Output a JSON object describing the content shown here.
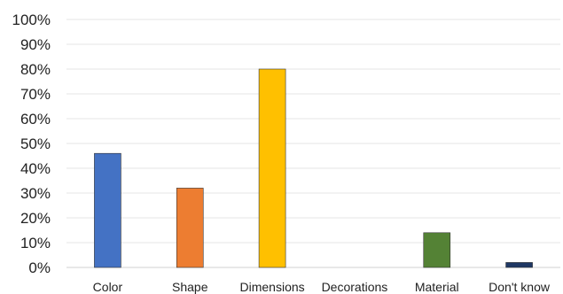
{
  "chart_data": {
    "type": "bar",
    "title": "",
    "xlabel": "",
    "ylabel": "",
    "categories": [
      "Color",
      "Shape",
      "Dimensions",
      "Decorations",
      "Material",
      "Don't know"
    ],
    "values": [
      46,
      32,
      80,
      0,
      14,
      2
    ],
    "colors": [
      "#4472C4",
      "#ED7D31",
      "#FFC000",
      "#A5A5A5",
      "#548235",
      "#1F3864"
    ],
    "ylim": [
      0,
      100
    ],
    "yticks": [
      0,
      10,
      20,
      30,
      40,
      50,
      60,
      70,
      80,
      90,
      100
    ],
    "ytick_labels": [
      "0%",
      "10%",
      "20%",
      "30%",
      "40%",
      "50%",
      "60%",
      "70%",
      "80%",
      "90%",
      "100%"
    ],
    "grid": true,
    "legend": "none"
  }
}
